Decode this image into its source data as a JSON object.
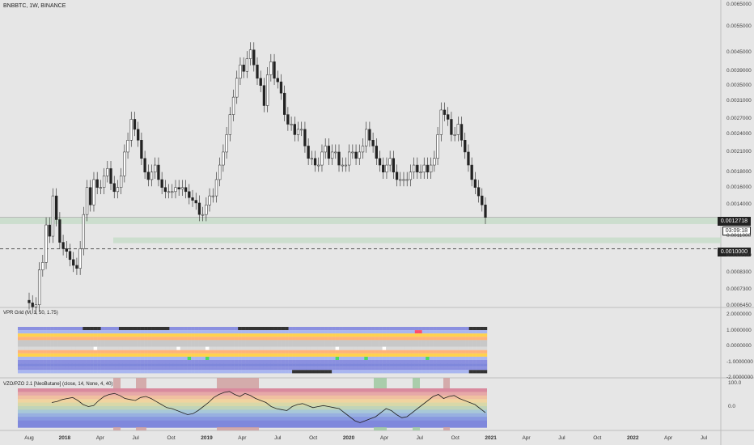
{
  "symbol": "BNBBTC, 1W, BINANCE",
  "price_axis": [
    "0.0065000",
    "0.0055000",
    "0.0045000",
    "0.0039000",
    "0.0035000",
    "0.0031000",
    "0.0027000",
    "0.0024000",
    "0.0021000",
    "0.0018000",
    "0.0016000",
    "0.0014000",
    "0.0011000",
    "0.0009500",
    "0.0008300",
    "0.0007300",
    "0.0006450"
  ],
  "price_tags": {
    "last_price": "0.0012718",
    "countdown": "03:09:18",
    "level": "0.0010000"
  },
  "vpr_pane": {
    "label": "VPR Grid (M, 1, 50, 1.75)",
    "axis": [
      "2.0000000",
      "1.0000000",
      "0.0000000",
      "-1.0000000",
      "-2.0000000"
    ]
  },
  "vzo_pane": {
    "label": "VZO/PZO 2.1 [NeoButane] (close, 14, None, 4, 40)",
    "axis": [
      "100.0",
      "0.0"
    ]
  },
  "time_axis": [
    "Aug",
    "2018",
    "Apr",
    "Jul",
    "Oct",
    "2019",
    "Apr",
    "Jul",
    "Oct",
    "2020",
    "Apr",
    "Jul",
    "Oct",
    "2021",
    "Apr",
    "Jul",
    "Oct",
    "2022",
    "Apr",
    "Jul"
  ],
  "colors": {
    "up": "#ffffff",
    "down": "#222222",
    "zone": "#c6dcc8",
    "bg": "#e6e6e6"
  },
  "chart_data": {
    "type": "candlestick",
    "x_unit": "week",
    "y_scale": "log",
    "ylim": [
      0.000645,
      0.0065
    ],
    "close": [
      0.00066,
      0.00064,
      0.00065,
      0.00085,
      0.0009,
      0.0012,
      0.0011,
      0.0015,
      0.00125,
      0.00105,
      0.001,
      0.00098,
      0.00092,
      0.00088,
      0.00086,
      0.001,
      0.0013,
      0.0016,
      0.0014,
      0.0017,
      0.0016,
      0.0016,
      0.00175,
      0.00185,
      0.00165,
      0.00155,
      0.0016,
      0.00175,
      0.0021,
      0.0023,
      0.0027,
      0.0025,
      0.0023,
      0.002,
      0.0018,
      0.0017,
      0.0018,
      0.0019,
      0.0017,
      0.0016,
      0.00155,
      0.00155,
      0.00155,
      0.0016,
      0.00158,
      0.0016,
      0.00155,
      0.00148,
      0.00145,
      0.00142,
      0.0013,
      0.0013,
      0.0014,
      0.0015,
      0.0015,
      0.0017,
      0.0019,
      0.0021,
      0.0024,
      0.0028,
      0.0032,
      0.0037,
      0.0041,
      0.0039,
      0.0043,
      0.0046,
      0.0041,
      0.0037,
      0.0035,
      0.003,
      0.0038,
      0.0042,
      0.0037,
      0.0036,
      0.0033,
      0.0028,
      0.0026,
      0.0026,
      0.0024,
      0.0025,
      0.0025,
      0.0022,
      0.002,
      0.002,
      0.0019,
      0.0019,
      0.0021,
      0.0022,
      0.002,
      0.0021,
      0.0021,
      0.0019,
      0.0019,
      0.0019,
      0.0021,
      0.0021,
      0.002,
      0.0021,
      0.0022,
      0.0025,
      0.0023,
      0.0022,
      0.002,
      0.0019,
      0.0018,
      0.0019,
      0.002,
      0.0018,
      0.0017,
      0.0017,
      0.0017,
      0.0017,
      0.0018,
      0.0019,
      0.0018,
      0.0018,
      0.0019,
      0.0018,
      0.0019,
      0.002,
      0.0024,
      0.0029,
      0.0028,
      0.0027,
      0.0024,
      0.0024,
      0.0026,
      0.0023,
      0.0021,
      0.0019,
      0.0017,
      0.0016,
      0.0015,
      0.0014,
      0.0012718
    ]
  },
  "vzo_data": [
    30,
    35,
    45,
    50,
    55,
    40,
    20,
    10,
    15,
    40,
    60,
    70,
    75,
    65,
    50,
    45,
    40,
    55,
    60,
    50,
    35,
    20,
    5,
    0,
    -10,
    -20,
    -30,
    -25,
    -10,
    10,
    30,
    55,
    70,
    80,
    85,
    70,
    60,
    75,
    65,
    50,
    40,
    30,
    10,
    0,
    -5,
    -10,
    10,
    20,
    25,
    15,
    5,
    10,
    15,
    10,
    5,
    0,
    -20,
    -40,
    -60,
    -70,
    -60,
    -50,
    -40,
    -20,
    0,
    -10,
    -30,
    -45,
    -40,
    -20,
    0,
    20,
    40,
    60,
    70,
    50,
    60,
    65,
    50,
    40,
    30,
    20,
    0,
    -20
  ]
}
